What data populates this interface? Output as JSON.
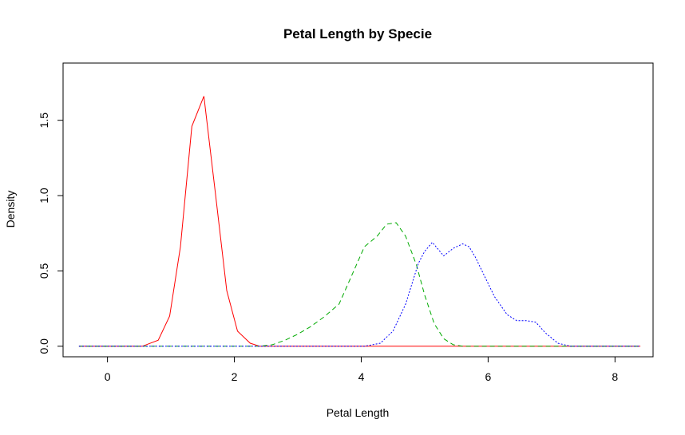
{
  "chart_data": {
    "type": "line",
    "title": "Petal Length by Specie",
    "xlabel": "Petal Length",
    "ylabel": "Density",
    "xlim": [
      -0.7,
      8.6
    ],
    "ylim": [
      -0.07,
      1.88
    ],
    "xticks": [
      0,
      2,
      4,
      6,
      8
    ],
    "xtick_labels": [
      "0",
      "2",
      "4",
      "6",
      "8"
    ],
    "yticks": [
      0.0,
      0.5,
      1.0,
      1.5
    ],
    "ytick_labels": [
      "0.0",
      "0.5",
      "1.0",
      "1.5"
    ],
    "grid": false,
    "legend": "none",
    "series": [
      {
        "color": "#ff0000",
        "dash": "solid",
        "x": [
          -0.45,
          0.55,
          0.8,
          0.98,
          1.15,
          1.33,
          1.52,
          1.7,
          1.88,
          2.05,
          2.25,
          2.4,
          5.5,
          8.4
        ],
        "y": [
          0.0,
          0.0,
          0.04,
          0.2,
          0.66,
          1.46,
          1.66,
          1.02,
          0.37,
          0.1,
          0.02,
          0.0,
          0.0,
          0.0
        ]
      },
      {
        "color": "#00aa00",
        "dash": "dashed",
        "x": [
          -0.45,
          2.4,
          2.6,
          2.8,
          3.0,
          3.2,
          3.4,
          3.65,
          3.85,
          4.05,
          4.25,
          4.4,
          4.55,
          4.7,
          4.87,
          5.0,
          5.15,
          5.3,
          5.45,
          5.6,
          8.4
        ],
        "y": [
          0.0,
          0.0,
          0.01,
          0.04,
          0.08,
          0.13,
          0.19,
          0.28,
          0.47,
          0.66,
          0.73,
          0.81,
          0.82,
          0.73,
          0.54,
          0.34,
          0.15,
          0.05,
          0.01,
          0.0,
          0.0
        ],
        "dash_array": "6,4"
      },
      {
        "color": "#0000ff",
        "dash": "dotted",
        "x": [
          -0.45,
          4.05,
          4.3,
          4.5,
          4.7,
          4.9,
          5.0,
          5.12,
          5.22,
          5.3,
          5.45,
          5.6,
          5.7,
          5.8,
          5.95,
          6.1,
          6.3,
          6.45,
          6.6,
          6.75,
          6.9,
          7.1,
          7.3,
          8.4
        ],
        "y": [
          0.0,
          0.0,
          0.02,
          0.1,
          0.28,
          0.55,
          0.63,
          0.69,
          0.64,
          0.6,
          0.65,
          0.68,
          0.66,
          0.59,
          0.46,
          0.33,
          0.21,
          0.17,
          0.17,
          0.16,
          0.09,
          0.02,
          0.0,
          0.0
        ],
        "dash_array": "2,2"
      }
    ]
  }
}
